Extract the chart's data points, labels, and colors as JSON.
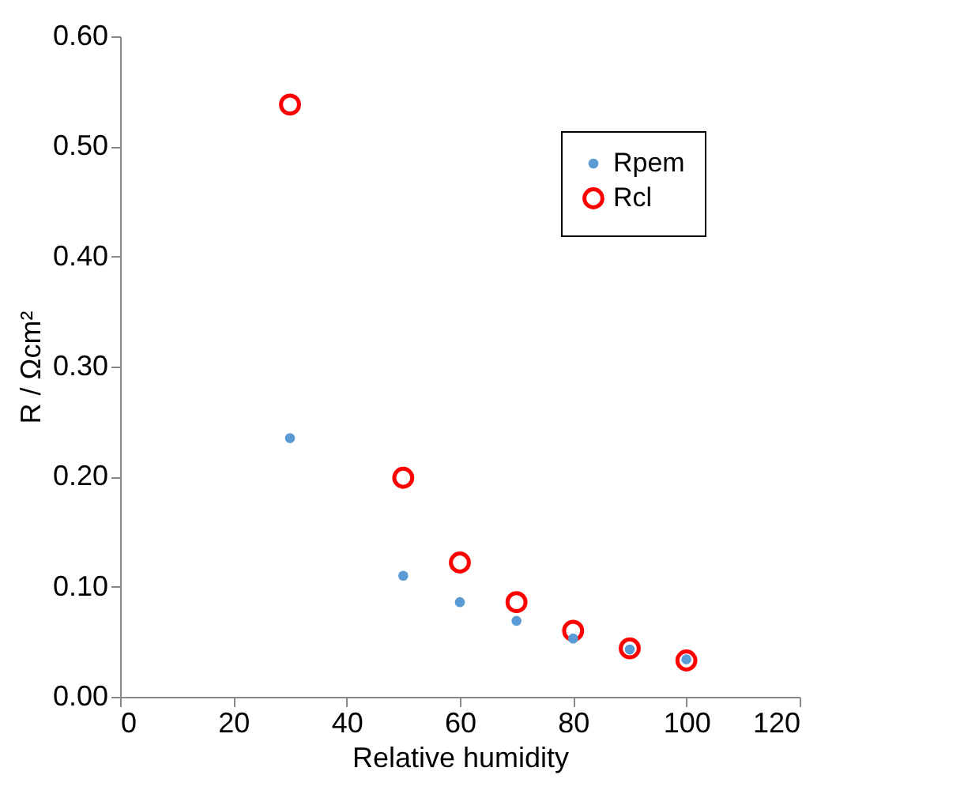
{
  "chart_data": {
    "type": "scatter",
    "xlabel": "Relative humidity",
    "ylabel": "R / Ωcm²",
    "xlim": [
      0,
      120
    ],
    "xticks": [
      0,
      20,
      40,
      60,
      80,
      100,
      120
    ],
    "ylim": [
      0,
      0.6
    ],
    "yticks": [
      {
        "value": 0,
        "label": "0.00"
      },
      {
        "value": 0.1,
        "label": "0.10"
      },
      {
        "value": 0.2,
        "label": "0.20"
      },
      {
        "value": 0.3,
        "label": "0.30"
      },
      {
        "value": 0.4,
        "label": "0.40"
      },
      {
        "value": 0.5,
        "label": "0.50"
      },
      {
        "value": 0.6,
        "label": "0.60"
      }
    ],
    "grid": false,
    "legend": "top right",
    "marker": "circle",
    "x": [
      30,
      50,
      60,
      70,
      80,
      90,
      100
    ],
    "series": [
      {
        "name": "Rpem",
        "color": "#5b9bd5",
        "values": [
          0.235,
          0.11,
          0.086,
          0.069,
          0.053,
          0.043,
          0.034
        ]
      },
      {
        "name": "Rcl",
        "color": "#ff0000",
        "values": [
          0.538,
          0.199,
          0.122,
          0.086,
          0.06,
          0.044,
          0.033
        ]
      }
    ]
  }
}
